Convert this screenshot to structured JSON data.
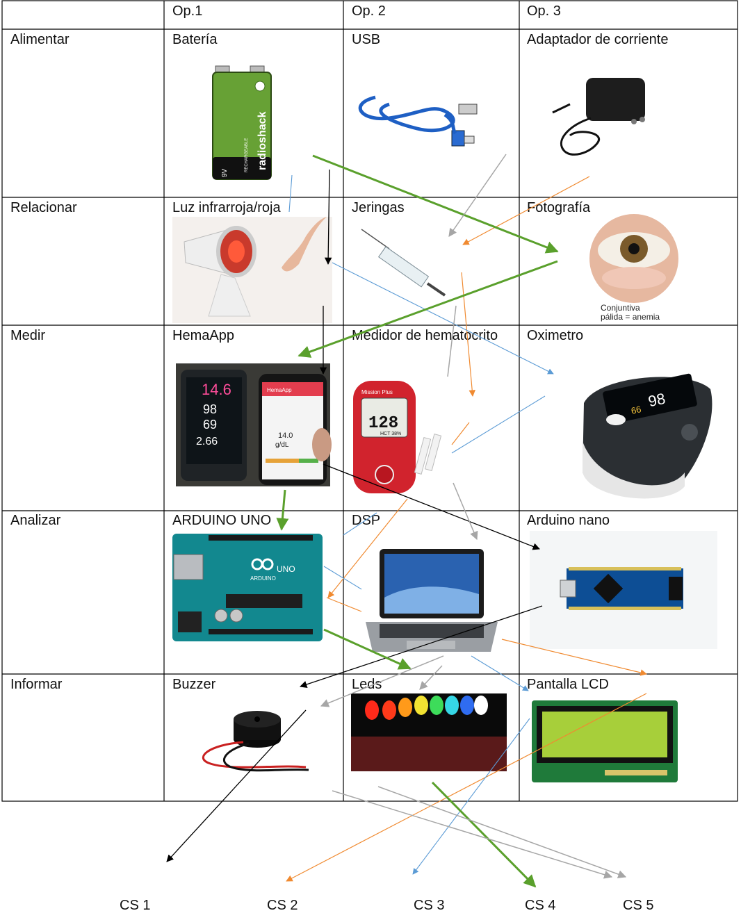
{
  "columns": [
    "",
    "Op.1",
    "Op. 2",
    "Op. 3"
  ],
  "rows": [
    {
      "function": "Alimentar",
      "options": [
        "Batería",
        "USB",
        "Adaptador de corriente"
      ]
    },
    {
      "function": "Relacionar",
      "options": [
        "Luz infrarroja/roja",
        "Jeringas",
        "Fotografía"
      ]
    },
    {
      "function": "Medir",
      "options": [
        "HemaApp",
        "Medidor de hematocrito",
        "Oximetro"
      ]
    },
    {
      "function": "Analizar",
      "options": [
        "ARDUINO UNO",
        "DSP",
        "Arduino nano"
      ]
    },
    {
      "function": "Informar",
      "options": [
        "Buzzer",
        "Leds",
        "Pantalla LCD"
      ]
    }
  ],
  "images": {
    "battery": {
      "brand": "radioshack",
      "voltage": "9V",
      "label": "RECHARGEABLE"
    },
    "photo": {
      "caption_1": "Conjuntiva",
      "caption_2": "pálida = anemia"
    },
    "hemaapp": {
      "value_1": "14.6",
      "value_2": "98",
      "value_3": "69",
      "value_4": "2.66",
      "phone_value": "14.0",
      "phone_unit": "g/dL",
      "app_name": "HemaApp"
    },
    "hematocrit": {
      "brand": "Mission Plus",
      "reading": "128",
      "unit": "HCT 38%"
    },
    "oximeter": {
      "spo2": "98",
      "pulse": "66"
    },
    "arduino_uno": {
      "label": "UNO",
      "brand": "ARDUINO"
    }
  },
  "concept_solutions": [
    "CS 1",
    "CS 2",
    "CS 3",
    "CS 4",
    "CS 5"
  ],
  "colors": {
    "cs1": "#000000",
    "cs2": "#f08a30",
    "cs3": "#5b9bd5",
    "cs4": "#5aa02c",
    "cs5": "#a6a6a6",
    "grid": "#000000"
  }
}
